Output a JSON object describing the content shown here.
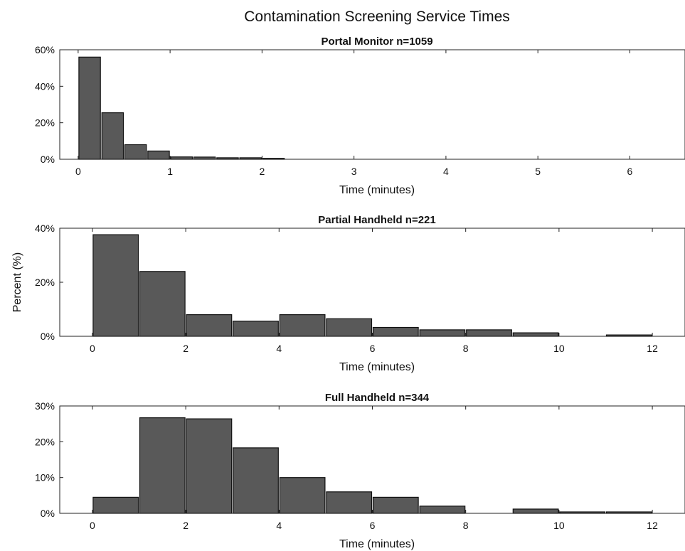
{
  "title": "Contamination Screening Service Times",
  "ylabel": "Percent (%)",
  "chart_data": [
    {
      "type": "bar",
      "title": "Portal Monitor n=1059",
      "xlabel": "Time (minutes)",
      "xlim": [
        -0.2,
        6.6
      ],
      "ylim": [
        0,
        60
      ],
      "xticks": [
        0,
        1,
        2,
        3,
        4,
        5,
        6
      ],
      "yticks": [
        0,
        20,
        40,
        60
      ],
      "ytick_labels": [
        "0%",
        "20%",
        "40%",
        "60%"
      ],
      "bin_width": 0.25,
      "x": [
        0.125,
        0.375,
        0.625,
        0.875,
        1.125,
        1.375,
        1.625,
        1.875,
        2.125
      ],
      "values": [
        56,
        25.5,
        8,
        4.5,
        1.3,
        1.2,
        0.8,
        0.8,
        0.5
      ],
      "grid": false
    },
    {
      "type": "bar",
      "title": "Partial Handheld n=221",
      "xlabel": "Time (minutes)",
      "xlim": [
        -0.7,
        12.7
      ],
      "ylim": [
        0,
        40
      ],
      "xticks": [
        0,
        2,
        4,
        6,
        8,
        10,
        12
      ],
      "yticks": [
        0,
        20,
        40
      ],
      "ytick_labels": [
        "0%",
        "20%",
        "40%"
      ],
      "bin_width": 1,
      "x": [
        0.5,
        1.5,
        2.5,
        3.5,
        4.5,
        5.5,
        6.5,
        7.5,
        8.5,
        9.5,
        11.5
      ],
      "values": [
        37.6,
        24,
        8,
        5.6,
        8,
        6.5,
        3.3,
        2.4,
        2.4,
        1.3,
        0.5
      ],
      "grid": false
    },
    {
      "type": "bar",
      "title": "Full Handheld n=344",
      "xlabel": "Time (minutes)",
      "xlim": [
        -0.7,
        12.7
      ],
      "ylim": [
        0,
        30
      ],
      "xticks": [
        0,
        2,
        4,
        6,
        8,
        10,
        12
      ],
      "yticks": [
        0,
        10,
        20,
        30
      ],
      "ytick_labels": [
        "0%",
        "10%",
        "20%",
        "30%"
      ],
      "bin_width": 1,
      "x": [
        0.5,
        1.5,
        2.5,
        3.5,
        4.5,
        5.5,
        6.5,
        7.5,
        9.5,
        10.5,
        11.5
      ],
      "values": [
        4.5,
        26.7,
        26.4,
        18.3,
        10,
        6,
        4.5,
        2,
        1.2,
        0.4,
        0.4
      ],
      "grid": false
    }
  ]
}
